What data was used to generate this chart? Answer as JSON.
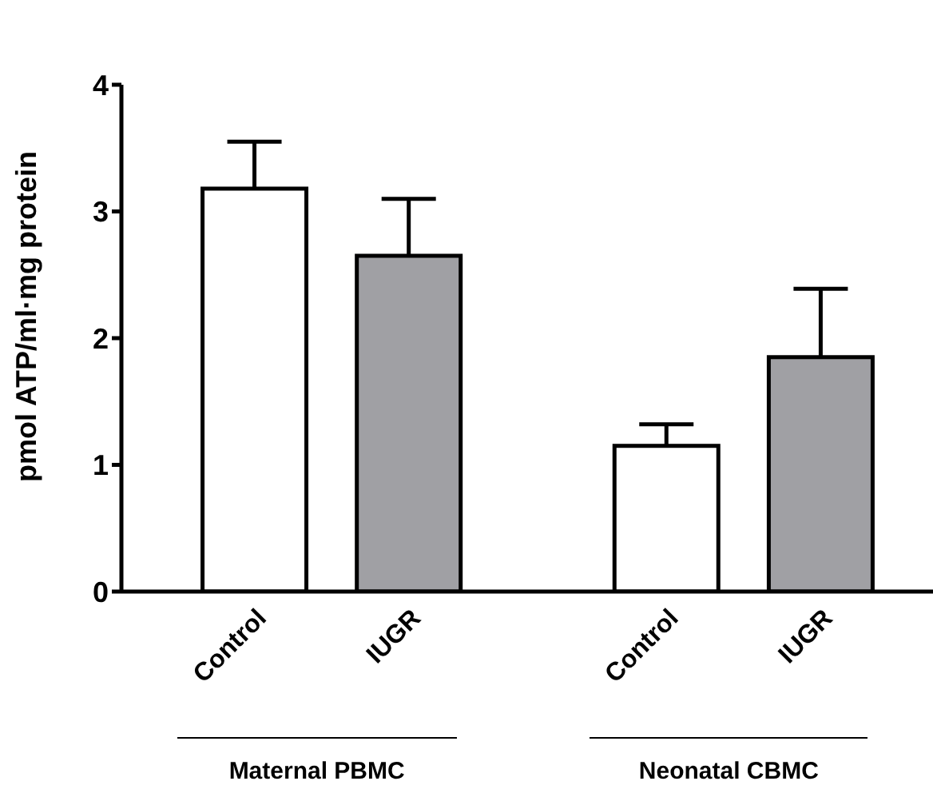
{
  "chart_data": {
    "type": "bar",
    "ylabel": "pmol ATP/ml·mg protein",
    "categories": [
      "Control",
      "IUGR",
      "Control",
      "IUGR"
    ],
    "values": [
      3.18,
      2.65,
      1.15,
      1.85
    ],
    "errors": [
      [
        3.18,
        3.55
      ],
      [
        2.65,
        3.1
      ],
      [
        1.15,
        1.32
      ],
      [
        1.85,
        2.39
      ]
    ],
    "colors": [
      "#ffffff",
      "#a0a0a4",
      "#ffffff",
      "#a0a0a4"
    ],
    "ylim": [
      0,
      4
    ],
    "yticks": [
      0,
      1,
      2,
      3,
      4
    ],
    "annotations": [
      "Maternal PBMC",
      "Neonatal CBMC"
    ]
  }
}
